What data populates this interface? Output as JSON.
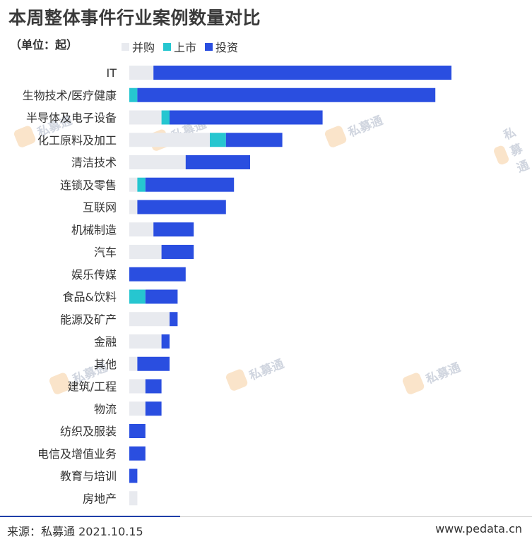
{
  "title": "本周整体事件行业案例数量对比",
  "unit_label": "（单位：起）",
  "footer": {
    "source": "来源：私募通 2021.10.15",
    "site": "www.pedata.cn"
  },
  "watermark": {
    "text": "私募通"
  },
  "colors": {
    "merger": "#e8eaef",
    "ipo": "#26c6d0",
    "investment": "#2a4ee0"
  },
  "chart_data": {
    "type": "bar",
    "orientation": "horizontal",
    "stacked": true,
    "categories": [
      "IT",
      "生物技术/医疗健康",
      "半导体及电子设备",
      "化工原料及加工",
      "清洁技术",
      "连锁及零售",
      "互联网",
      "机械制造",
      "汽车",
      "娱乐传媒",
      "食品&饮料",
      "能源及矿产",
      "金融",
      "其他",
      "建筑/工程",
      "物流",
      "纺织及服装",
      "电信及增值业务",
      "教育与培训",
      "房地产"
    ],
    "series": [
      {
        "name": "并购",
        "values": [
          3,
          0,
          4,
          10,
          7,
          1,
          1,
          3,
          4,
          0,
          0,
          5,
          4,
          1,
          2,
          2,
          0,
          0,
          0,
          1
        ]
      },
      {
        "name": "上市",
        "values": [
          0,
          1,
          1,
          2,
          0,
          1,
          0,
          0,
          0,
          0,
          2,
          0,
          0,
          0,
          0,
          0,
          0,
          0,
          0,
          0
        ]
      },
      {
        "name": "投资",
        "values": [
          37,
          37,
          19,
          7,
          8,
          11,
          11,
          5,
          4,
          7,
          4,
          1,
          1,
          4,
          2,
          2,
          2,
          2,
          1,
          0
        ]
      }
    ],
    "xlim": [
      0,
      50
    ],
    "legend_position": "top",
    "grid": false
  }
}
